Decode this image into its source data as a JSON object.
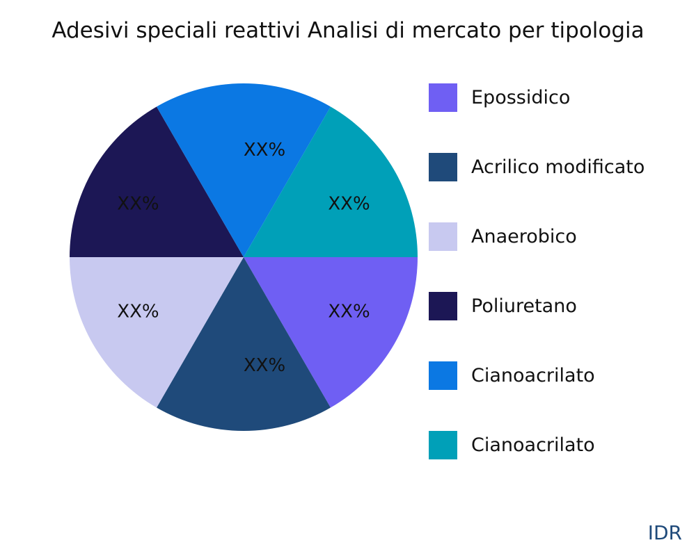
{
  "chart_data": {
    "type": "pie",
    "title": "Adesivi speciali reattivi Analisi di mercato per tipologia",
    "slices": [
      {
        "name": "Epossidico",
        "value": 1,
        "label": "XX%",
        "color": "#6f5ff3"
      },
      {
        "name": "Acrilico modificato",
        "value": 1,
        "label": "XX%",
        "color": "#1f4a7a"
      },
      {
        "name": "Anaerobico",
        "value": 1,
        "label": "XX%",
        "color": "#c8c9f0"
      },
      {
        "name": "Poliuretano",
        "value": 1,
        "label": "XX%",
        "color": "#1c1755"
      },
      {
        "name": "Cianoacrilato",
        "value": 1,
        "label": "XX%",
        "color": "#0b78e3"
      },
      {
        "name": "Cianoacrilato",
        "value": 1,
        "label": "XX%",
        "color": "#00a0b8"
      }
    ],
    "legend_placement": "right"
  },
  "brand": "IDR"
}
